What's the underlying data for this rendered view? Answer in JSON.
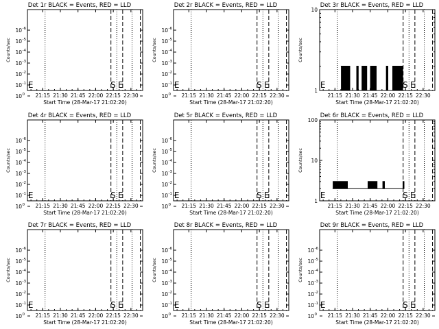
{
  "chart_data": {
    "type": "line",
    "x_tick_labels": [
      "21:15",
      "21:30",
      "21:45",
      "22:00",
      "22:15",
      "22:30"
    ],
    "x_tick_minutes": [
      15,
      30,
      45,
      60,
      75,
      90
    ],
    "xlim_minutes": [
      2,
      100
    ],
    "xlabel": "Start Time (28-Mar-17 21:02:20)",
    "ylabel": "Counts/sec",
    "markers": [
      {
        "label": "E",
        "x_minute": 2.5
      },
      {
        "label": "S",
        "x_minute": 75
      },
      {
        "label": "E",
        "x_minute": 79
      }
    ],
    "dashed_lines_minutes": [
      73,
      83,
      98
    ],
    "dotted_lines_minutes": [
      17,
      78,
      91
    ],
    "panels": [
      {
        "title": "Det 1r BLACK = Events, RED = LLD",
        "scale": "log-blank",
        "ytick_main": "10",
        "ytick_exp": [
          "0",
          "-1",
          "-2",
          "-3",
          "-4",
          "-5",
          "-6"
        ],
        "series": []
      },
      {
        "title": "Det 2r BLACK = Events, RED = LLD",
        "scale": "log-blank",
        "ytick_main": "10",
        "ytick_exp": [
          "0",
          "-1",
          "-2",
          "-3",
          "-4",
          "-5",
          "-6"
        ],
        "series": []
      },
      {
        "title": "Det 3r BLACK = Events, RED = LLD",
        "scale": "log",
        "ylim": [
          1,
          10
        ],
        "ytick_labels": [
          "1",
          "10"
        ],
        "series": [
          {
            "color": "#000000",
            "x_range": [
              20,
              74
            ],
            "low": 1,
            "high": 2,
            "bursts": [
              [
                20,
                28
              ],
              [
                33,
                35
              ],
              [
                38,
                42
              ],
              [
                45,
                50
              ],
              [
                58,
                60
              ],
              [
                64,
                73
              ]
            ]
          }
        ]
      },
      {
        "title": "Det 4r BLACK = Events, RED = LLD",
        "scale": "log-blank",
        "ytick_main": "10",
        "ytick_exp": [
          "0",
          "-1",
          "-2",
          "-3",
          "-4",
          "-5",
          "-6"
        ],
        "series": []
      },
      {
        "title": "Det 5r BLACK = Events, RED = LLD",
        "scale": "log-blank",
        "ytick_main": "10",
        "ytick_exp": [
          "0",
          "-1",
          "-2",
          "-3",
          "-4",
          "-5",
          "-6"
        ],
        "series": []
      },
      {
        "title": "Det 6r BLACK = Events, RED = LLD",
        "scale": "log",
        "ylim": [
          1,
          100
        ],
        "ytick_labels": [
          "1",
          "10",
          "100"
        ],
        "series": [
          {
            "color": "#000000",
            "x_range": [
              13,
              74
            ],
            "low": 2,
            "high": 3,
            "bursts": [
              [
                13,
                26
              ],
              [
                43,
                51
              ],
              [
                55,
                57
              ],
              [
                72,
                74
              ]
            ]
          }
        ]
      },
      {
        "title": "Det 7r BLACK = Events, RED = LLD",
        "scale": "log-blank",
        "ytick_main": "10",
        "ytick_exp": [
          "0",
          "-1",
          "-2",
          "-3",
          "-4",
          "-5",
          "-6"
        ],
        "series": []
      },
      {
        "title": "Det 8r BLACK = Events, RED = LLD",
        "scale": "log-blank",
        "ytick_main": "10",
        "ytick_exp": [
          "0",
          "-1",
          "-2",
          "-3",
          "-4",
          "-5",
          "-6"
        ],
        "series": []
      },
      {
        "title": "Det 9r BLACK = Events, RED = LLD",
        "scale": "log-blank",
        "ytick_main": "10",
        "ytick_exp": [
          "0",
          "-1",
          "-2",
          "-3",
          "-4",
          "-5",
          "-6"
        ],
        "series": []
      }
    ]
  }
}
